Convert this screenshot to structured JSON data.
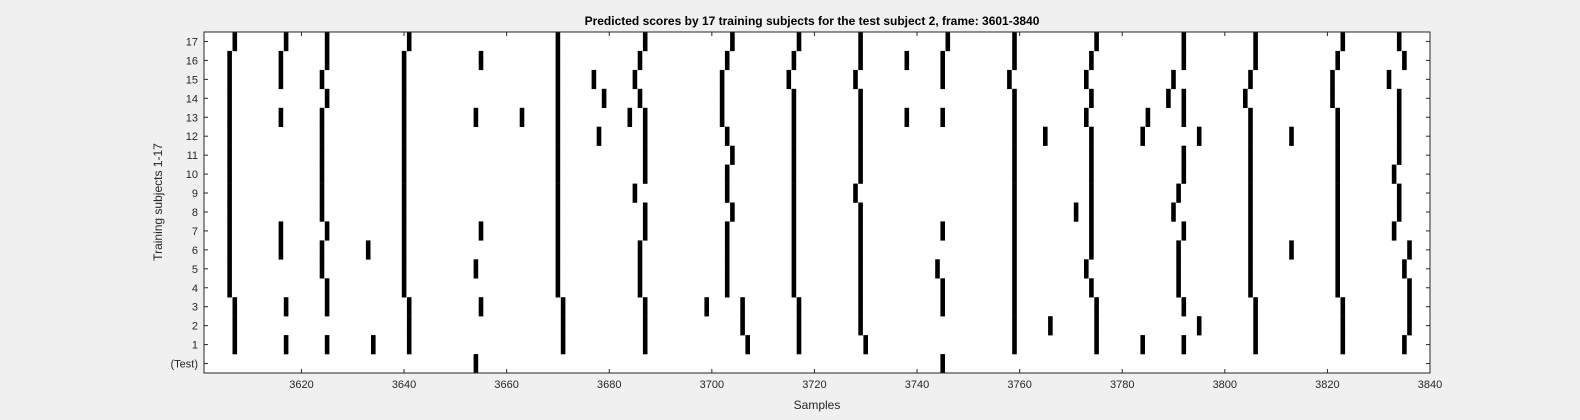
{
  "chart_data": {
    "type": "raster",
    "title": "Predicted scores by 17 training subjects for the test subject 2, frame: 3601-3840",
    "xlabel": "Samples",
    "ylabel": "Training subjects 1-17",
    "xlim": [
      3601,
      3840
    ],
    "x_ticks": [
      3620,
      3640,
      3660,
      3680,
      3700,
      3720,
      3740,
      3760,
      3780,
      3800,
      3820,
      3840
    ],
    "y_ticks": [
      "(Test)",
      "1",
      "2",
      "3",
      "4",
      "5",
      "6",
      "7",
      "8",
      "9",
      "10",
      "11",
      "12",
      "13",
      "14",
      "15",
      "16",
      "17"
    ],
    "colors": {
      "event": "#000000",
      "plot_bg": "#ffffff",
      "figure_bg": "#f0f0f0"
    },
    "rows": [
      {
        "label": "(Test)",
        "events": [
          3654,
          3745
        ]
      },
      {
        "label": "1",
        "events": [
          3607,
          3617,
          3625,
          3634,
          3641,
          3671,
          3687,
          3707,
          3717,
          3730,
          3759,
          3775,
          3784,
          3792,
          3806,
          3823,
          3835
        ]
      },
      {
        "label": "2",
        "events": [
          3607,
          3641,
          3671,
          3687,
          3706,
          3717,
          3729,
          3759,
          3766,
          3775,
          3795,
          3806,
          3823,
          3836
        ]
      },
      {
        "label": "3",
        "events": [
          3607,
          3617,
          3625,
          3641,
          3655,
          3671,
          3687,
          3699,
          3706,
          3717,
          3729,
          3745,
          3759,
          3775,
          3792,
          3806,
          3823,
          3836
        ]
      },
      {
        "label": "4",
        "events": [
          3606,
          3625,
          3640,
          3670,
          3686,
          3703,
          3716,
          3729,
          3745,
          3759,
          3774,
          3791,
          3805,
          3822,
          3836
        ]
      },
      {
        "label": "5",
        "events": [
          3606,
          3624,
          3640,
          3654,
          3670,
          3686,
          3703,
          3716,
          3729,
          3744,
          3759,
          3773,
          3791,
          3805,
          3822,
          3835
        ]
      },
      {
        "label": "6",
        "events": [
          3606,
          3616,
          3624,
          3633,
          3640,
          3670,
          3686,
          3703,
          3716,
          3729,
          3759,
          3774,
          3791,
          3805,
          3813,
          3822,
          3836
        ]
      },
      {
        "label": "7",
        "events": [
          3606,
          3616,
          3625,
          3640,
          3655,
          3670,
          3687,
          3703,
          3716,
          3729,
          3745,
          3759,
          3774,
          3792,
          3805,
          3822,
          3833
        ]
      },
      {
        "label": "8",
        "events": [
          3606,
          3624,
          3640,
          3670,
          3687,
          3704,
          3716,
          3729,
          3759,
          3771,
          3774,
          3790,
          3805,
          3822,
          3834
        ]
      },
      {
        "label": "9",
        "events": [
          3606,
          3624,
          3640,
          3670,
          3685,
          3703,
          3716,
          3728,
          3759,
          3774,
          3791,
          3805,
          3822,
          3834
        ]
      },
      {
        "label": "10",
        "events": [
          3606,
          3624,
          3640,
          3670,
          3687,
          3703,
          3716,
          3729,
          3759,
          3774,
          3792,
          3805,
          3822,
          3833
        ]
      },
      {
        "label": "11",
        "events": [
          3606,
          3624,
          3640,
          3670,
          3687,
          3704,
          3716,
          3729,
          3759,
          3774,
          3792,
          3805,
          3822,
          3834
        ]
      },
      {
        "label": "12",
        "events": [
          3606,
          3624,
          3640,
          3670,
          3678,
          3687,
          3703,
          3716,
          3729,
          3759,
          3765,
          3774,
          3784,
          3795,
          3805,
          3813,
          3822,
          3834
        ]
      },
      {
        "label": "13",
        "events": [
          3606,
          3616,
          3624,
          3640,
          3654,
          3663,
          3670,
          3684,
          3687,
          3702,
          3716,
          3729,
          3738,
          3745,
          3759,
          3773,
          3785,
          3792,
          3805,
          3822,
          3834
        ]
      },
      {
        "label": "14",
        "events": [
          3606,
          3625,
          3640,
          3670,
          3679,
          3686,
          3702,
          3716,
          3729,
          3759,
          3774,
          3789,
          3792,
          3804,
          3821,
          3834
        ]
      },
      {
        "label": "15",
        "events": [
          3606,
          3616,
          3624,
          3640,
          3670,
          3677,
          3685,
          3702,
          3715,
          3728,
          3745,
          3758,
          3773,
          3790,
          3805,
          3821,
          3832
        ]
      },
      {
        "label": "16",
        "events": [
          3606,
          3616,
          3625,
          3640,
          3655,
          3670,
          3686,
          3703,
          3716,
          3729,
          3738,
          3745,
          3759,
          3774,
          3792,
          3806,
          3822,
          3835
        ]
      },
      {
        "label": "17",
        "events": [
          3607,
          3617,
          3625,
          3641,
          3670,
          3687,
          3704,
          3717,
          3729,
          3746,
          3759,
          3775,
          3792,
          3806,
          3823,
          3834
        ]
      }
    ]
  }
}
